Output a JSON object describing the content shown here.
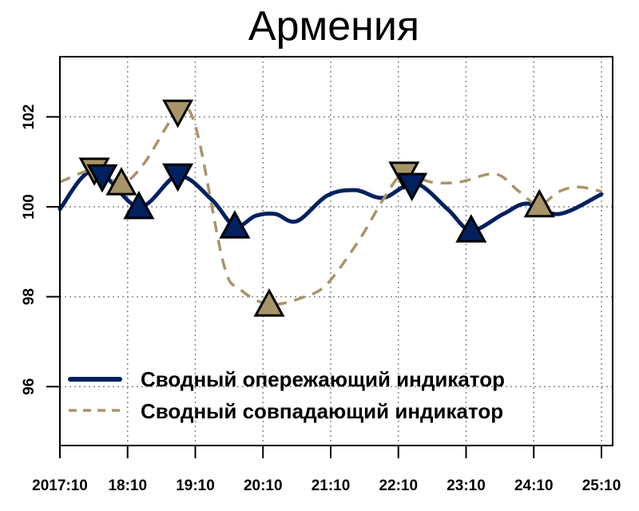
{
  "chart_data": {
    "type": "line",
    "title": "Армения",
    "xlabel": "",
    "ylabel": "",
    "x_tick_labels": [
      "2017:10",
      "18:10",
      "19:10",
      "20:10",
      "21:10",
      "22:10",
      "23:10",
      "24:10",
      "25:10"
    ],
    "x_tick_months": [
      0,
      12,
      24,
      36,
      48,
      60,
      72,
      84,
      96
    ],
    "y_ticks": [
      96,
      98,
      100,
      102
    ],
    "ylim": [
      94.69,
      103.34
    ],
    "xlim_months": [
      0,
      98
    ],
    "grid": true,
    "legend_position": "bottom-left",
    "series": [
      {
        "name": "Сводный опережающий индикатор",
        "color": "#002060",
        "style": "solid",
        "points": [
          [
            0,
            99.95
          ],
          [
            6.1,
            100.82
          ],
          [
            14.0,
            100.0
          ],
          [
            20.9,
            100.69
          ],
          [
            26.9,
            100.16
          ],
          [
            31.0,
            99.57
          ],
          [
            34.7,
            99.8
          ],
          [
            38.2,
            99.84
          ],
          [
            42.0,
            99.68
          ],
          [
            47.4,
            100.25
          ],
          [
            52.4,
            100.37
          ],
          [
            57.3,
            100.2
          ],
          [
            63.0,
            100.52
          ],
          [
            68.7,
            99.95
          ],
          [
            72.9,
            99.48
          ],
          [
            78.6,
            99.84
          ],
          [
            82.8,
            100.07
          ],
          [
            88.5,
            99.84
          ],
          [
            96.0,
            100.28
          ]
        ],
        "markers": [
          {
            "month": 7.5,
            "value": 100.67,
            "shape": "down"
          },
          {
            "month": 14.0,
            "value": 100.0,
            "shape": "up"
          },
          {
            "month": 20.9,
            "value": 100.69,
            "shape": "down"
          },
          {
            "month": 31.0,
            "value": 99.57,
            "shape": "up"
          },
          {
            "month": 62.4,
            "value": 100.48,
            "shape": "down"
          },
          {
            "month": 72.9,
            "value": 99.48,
            "shape": "up"
          }
        ]
      },
      {
        "name": "Сводный совпадающий индикатор",
        "color": "#A89468",
        "style": "dashed",
        "points": [
          [
            0,
            100.55
          ],
          [
            6.1,
            100.82
          ],
          [
            10.9,
            100.53
          ],
          [
            14.9,
            100.96
          ],
          [
            20.9,
            102.11
          ],
          [
            24.1,
            101.76
          ],
          [
            29.0,
            98.74
          ],
          [
            31.9,
            98.17
          ],
          [
            37.1,
            97.83
          ],
          [
            43.2,
            97.99
          ],
          [
            47.4,
            98.29
          ],
          [
            53.1,
            99.27
          ],
          [
            57.3,
            100.16
          ],
          [
            60.9,
            100.73
          ],
          [
            65.8,
            100.55
          ],
          [
            70.8,
            100.55
          ],
          [
            77.2,
            100.73
          ],
          [
            81.4,
            100.34
          ],
          [
            84.9,
            100.04
          ],
          [
            88.5,
            100.34
          ],
          [
            92.0,
            100.44
          ],
          [
            96.0,
            100.34
          ]
        ],
        "markers": [
          {
            "month": 6.1,
            "value": 100.82,
            "shape": "down"
          },
          {
            "month": 10.9,
            "value": 100.53,
            "shape": "up"
          },
          {
            "month": 20.9,
            "value": 102.11,
            "shape": "down"
          },
          {
            "month": 37.1,
            "value": 97.83,
            "shape": "up"
          },
          {
            "month": 61.0,
            "value": 100.73,
            "shape": "down"
          },
          {
            "month": 85.0,
            "value": 100.04,
            "shape": "up"
          }
        ]
      }
    ]
  }
}
